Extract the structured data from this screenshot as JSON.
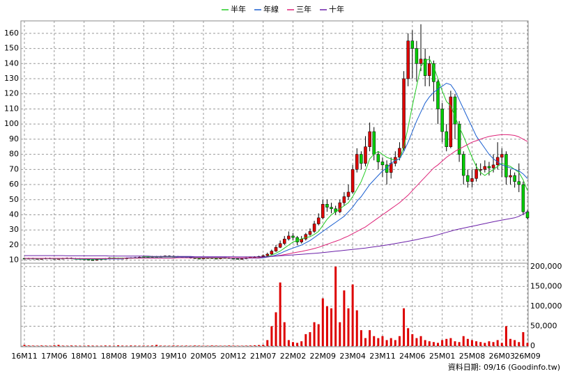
{
  "chart_data": {
    "type": "candlestick",
    "categories": [
      "16M11",
      null,
      null,
      null,
      null,
      null,
      null,
      "17M06",
      null,
      null,
      null,
      null,
      null,
      null,
      "18M01",
      null,
      null,
      null,
      null,
      null,
      null,
      "18M08",
      null,
      null,
      null,
      null,
      null,
      null,
      "19M03",
      null,
      null,
      null,
      null,
      null,
      null,
      "19M10",
      null,
      null,
      null,
      null,
      null,
      null,
      "20M05",
      null,
      null,
      null,
      null,
      null,
      null,
      "20M12",
      null,
      null,
      null,
      null,
      null,
      null,
      "21M07",
      null,
      null,
      null,
      null,
      null,
      null,
      "22M02",
      null,
      null,
      null,
      null,
      null,
      null,
      "22M09",
      null,
      null,
      null,
      null,
      null,
      null,
      "23M04",
      null,
      null,
      null,
      null,
      null,
      null,
      "23M11",
      null,
      null,
      null,
      null,
      null,
      null,
      "24M06",
      null,
      null,
      null,
      null,
      null,
      null,
      "25M01",
      null,
      null,
      null,
      null,
      null,
      null,
      "25M08",
      null,
      null,
      null,
      null,
      null,
      null,
      "26M03",
      null,
      null,
      null,
      null,
      null,
      "26M09"
    ],
    "open": [
      11.2,
      11,
      11.2,
      11,
      10.8,
      11,
      11.3,
      11.1,
      10.9,
      11,
      11.2,
      11.4,
      11.1,
      11,
      10.7,
      10.5,
      10.2,
      10,
      10.4,
      10.8,
      11,
      11.5,
      11.3,
      11.2,
      11,
      11.4,
      11.6,
      11.8,
      12,
      12.2,
      12.1,
      12.4,
      12.3,
      12.5,
      12.8,
      12.6,
      12.4,
      12.2,
      12,
      11.8,
      11.5,
      11.2,
      11,
      11.3,
      11.5,
      11.2,
      11,
      11.4,
      11.6,
      11.2,
      11,
      10.8,
      11,
      11.6,
      12,
      12.2,
      12.5,
      13,
      14,
      16,
      18.5,
      21,
      24,
      26,
      25,
      22,
      24,
      27,
      29,
      34,
      38,
      47,
      45,
      44,
      42,
      48,
      52,
      55,
      70,
      80,
      74,
      85,
      95,
      80,
      75,
      73,
      68,
      74,
      78,
      84,
      130,
      155,
      150,
      140,
      143,
      132,
      140,
      128,
      110,
      95,
      85,
      118,
      100,
      80,
      66,
      62,
      64,
      70,
      70,
      72,
      71,
      73,
      78,
      80,
      65,
      66,
      62,
      60,
      42
    ],
    "high": [
      11.6,
      11.6,
      11.6,
      11.4,
      11.4,
      11.7,
      11.7,
      11.5,
      11.4,
      11.6,
      11.8,
      11.8,
      11.5,
      11.4,
      11.1,
      10.9,
      10.6,
      10.8,
      11.2,
      11.4,
      11.9,
      11.9,
      11.7,
      11.6,
      11.8,
      12,
      12.2,
      12.4,
      12.6,
      12.6,
      12.8,
      12.8,
      12.9,
      13.2,
      13.2,
      13,
      12.8,
      12.6,
      12.4,
      12.2,
      11.9,
      11.6,
      11.7,
      11.9,
      11.9,
      11.6,
      11.8,
      12,
      12,
      11.6,
      11.4,
      11.4,
      12,
      12.4,
      12.6,
      12.9,
      13.8,
      15,
      17,
      20,
      23,
      26,
      29,
      28,
      26,
      26,
      28,
      31,
      36,
      41,
      50,
      50,
      48,
      46,
      50,
      55,
      60,
      73,
      84,
      82,
      92,
      101,
      98,
      82,
      78,
      76,
      78,
      82,
      88,
      135,
      160,
      162,
      155,
      166,
      150,
      145,
      142,
      130,
      114,
      100,
      122,
      120,
      102,
      82,
      70,
      70,
      74,
      74,
      76,
      75,
      80,
      88,
      84,
      82,
      70,
      68,
      74,
      62,
      43
    ],
    "low": [
      10.6,
      10.6,
      10.6,
      10.4,
      10.4,
      10.6,
      10.7,
      10.5,
      10.5,
      10.6,
      10.8,
      10.7,
      10.6,
      10.3,
      10.1,
      9.8,
      9.6,
      9.6,
      10,
      10.4,
      10.6,
      10.9,
      10.8,
      10.6,
      10.6,
      11,
      11.2,
      11.4,
      11.6,
      11.7,
      11.7,
      11.9,
      11.9,
      12.1,
      12.2,
      12,
      11.8,
      11.6,
      11.4,
      11.1,
      10.8,
      10.6,
      10.6,
      10.9,
      10.8,
      10.6,
      10.6,
      11,
      10.8,
      10.6,
      10.4,
      10.4,
      10.6,
      11.2,
      11.6,
      11.8,
      12,
      12.5,
      13.5,
      15.5,
      18,
      20,
      23,
      23,
      20,
      21,
      23,
      26,
      28,
      33,
      37,
      42,
      41,
      40,
      41,
      46,
      50,
      54,
      68,
      70,
      72,
      82,
      76,
      70,
      65,
      60,
      64,
      72,
      76,
      82,
      125,
      130,
      128,
      135,
      125,
      125,
      115,
      100,
      88,
      82,
      84,
      90,
      75,
      60,
      58,
      58,
      62,
      66,
      68,
      66,
      68,
      70,
      65,
      60,
      60,
      58,
      55,
      40,
      37
    ],
    "close": [
      11,
      11.2,
      11,
      10.8,
      11,
      11.3,
      11.1,
      10.9,
      11,
      11.2,
      11.4,
      11.1,
      11,
      10.7,
      10.5,
      10.2,
      10,
      10.4,
      10.8,
      11,
      11.5,
      11.3,
      11.2,
      11,
      11.4,
      11.6,
      11.8,
      12,
      12.2,
      12.1,
      12.4,
      12.3,
      12.5,
      12.8,
      12.6,
      12.4,
      12.2,
      12,
      11.8,
      11.5,
      11.2,
      11,
      11.3,
      11.5,
      11.2,
      11,
      11.4,
      11.6,
      11.2,
      11,
      10.8,
      11,
      11.6,
      12,
      12.2,
      12.5,
      13,
      14,
      16,
      18.5,
      21,
      24,
      26,
      25,
      22,
      24,
      27,
      29,
      34,
      38,
      47,
      45,
      44,
      42,
      48,
      52,
      55,
      70,
      80,
      74,
      85,
      95,
      80,
      75,
      73,
      68,
      74,
      78,
      84,
      130,
      155,
      150,
      140,
      143,
      132,
      140,
      128,
      110,
      95,
      85,
      118,
      100,
      80,
      66,
      62,
      64,
      70,
      70,
      72,
      71,
      73,
      78,
      80,
      65,
      66,
      62,
      60,
      42,
      38
    ],
    "volume": [
      3000,
      1500,
      1200,
      1000,
      1500,
      1200,
      1000,
      2000,
      3000,
      1200,
      1000,
      1500,
      1200,
      1000,
      1000,
      1500,
      1200,
      1000,
      1000,
      1500,
      1200,
      1000,
      2000,
      1200,
      1000,
      1500,
      1200,
      1000,
      1200,
      1000,
      1500,
      3000,
      1200,
      1000,
      1000,
      1500,
      1200,
      1000,
      1200,
      1000,
      1500,
      1200,
      1000,
      1000,
      1500,
      1200,
      1000,
      1000,
      1500,
      1200,
      1000,
      1000,
      1200,
      1500,
      2000,
      2500,
      3000,
      15000,
      50000,
      85000,
      160000,
      60000,
      15000,
      10000,
      8000,
      12000,
      30000,
      35000,
      60000,
      55000,
      120000,
      100000,
      95000,
      200000,
      60000,
      140000,
      95000,
      155000,
      90000,
      40000,
      20000,
      40000,
      25000,
      20000,
      25000,
      15000,
      20000,
      15000,
      25000,
      95000,
      45000,
      30000,
      20000,
      25000,
      15000,
      12000,
      10000,
      8000,
      15000,
      18000,
      20000,
      12000,
      10000,
      25000,
      18000,
      15000,
      12000,
      10000,
      8000,
      12000,
      10000,
      15000,
      8000,
      50000,
      18000,
      15000,
      10000,
      35000,
      8000
    ],
    "up_color": "#dd0000",
    "down_color": "#00cc00",
    "volume_color": "#dd0000",
    "series": [
      {
        "name": "半年",
        "color": "#22cc22",
        "values": [
          11.1,
          11.1,
          11.1,
          11.1,
          11.1,
          11.1,
          11.1,
          11.1,
          11.1,
          11.1,
          11.1,
          11.1,
          10.6,
          10.6,
          10.6,
          10.6,
          10.6,
          10.6,
          10.6,
          10.6,
          11.3,
          11.3,
          11.3,
          11.3,
          11.3,
          11.3,
          11.3,
          11.3,
          12.3,
          12.3,
          12.3,
          12.3,
          12.3,
          12.3,
          12.3,
          12.3,
          12.3,
          12.3,
          12.3,
          12.3,
          11.4,
          11.4,
          11.4,
          11.4,
          11.4,
          11.4,
          11.4,
          11.4,
          11.4,
          11.4,
          11.4,
          11.4,
          11.5,
          11.5,
          11.5,
          11.5,
          12,
          12.5,
          13.4,
          14.6,
          16,
          18,
          20,
          22,
          23,
          24,
          25,
          25.5,
          27,
          29,
          33,
          37,
          40,
          42,
          44,
          46,
          48,
          52,
          57,
          62,
          69,
          77,
          80,
          82,
          80,
          78,
          77,
          76,
          77,
          85,
          98,
          112,
          125,
          138,
          142,
          143,
          138,
          130,
          122,
          115,
          112,
          105,
          98,
          92,
          85,
          78,
          72,
          68,
          66,
          68,
          70,
          72,
          74,
          73,
          72,
          70,
          68,
          63,
          56
        ]
      },
      {
        "name": "年線",
        "color": "#1a5fd0",
        "values": [
          11.1,
          11.1,
          11.1,
          11.1,
          11.1,
          11.1,
          11.1,
          11.1,
          11.1,
          11.1,
          11.1,
          11.1,
          10.8,
          10.8,
          10.8,
          10.8,
          10.8,
          10.8,
          10.8,
          10.8,
          10.8,
          10.8,
          10.8,
          10.8,
          11.6,
          11.6,
          11.6,
          11.6,
          11.6,
          11.6,
          11.6,
          11.6,
          11.6,
          11.6,
          11.6,
          11.6,
          12,
          12,
          12,
          12,
          12,
          12,
          12,
          12,
          12,
          12,
          12,
          12,
          11.3,
          11.3,
          11.3,
          11.3,
          11.3,
          11.3,
          11.3,
          11.3,
          11.6,
          12,
          12.6,
          13.4,
          14.5,
          15.8,
          17,
          18,
          19,
          20,
          21.5,
          23,
          25,
          27,
          29,
          31,
          33,
          35,
          37,
          39,
          42,
          45,
          49,
          52,
          56,
          60,
          63,
          66,
          69,
          71,
          74,
          76,
          77,
          82,
          88,
          95,
          102,
          108,
          114,
          118,
          121,
          123,
          125,
          127,
          126,
          122,
          116,
          110,
          104,
          98,
          92,
          88,
          84,
          80,
          77,
          75,
          73,
          72,
          71,
          70,
          69,
          67,
          64
        ]
      },
      {
        "name": "三年",
        "color": "#dd2277",
        "values": [
          11.2,
          11.2,
          11.2,
          11.2,
          11.2,
          11.2,
          11.2,
          11.2,
          11.2,
          11.2,
          11.2,
          11.2,
          11.1,
          11.1,
          11.1,
          11.1,
          11.1,
          11.1,
          11.1,
          11.1,
          11.1,
          11.1,
          11.1,
          11.1,
          11.3,
          11.3,
          11.3,
          11.3,
          11.3,
          11.3,
          11.3,
          11.3,
          11.3,
          11.3,
          11.3,
          11.3,
          11.6,
          11.6,
          11.6,
          11.6,
          11.6,
          11.6,
          11.6,
          11.6,
          11.6,
          11.6,
          11.6,
          11.6,
          11.5,
          11.5,
          11.5,
          11.5,
          11.5,
          11.5,
          11.5,
          11.5,
          12,
          12.2,
          12.5,
          12.8,
          13.2,
          13.7,
          14.2,
          14.8,
          15.3,
          15.8,
          16.4,
          17,
          17.7,
          18.5,
          19.5,
          20.5,
          21.5,
          22.5,
          23.5,
          24.8,
          26,
          27.5,
          29,
          30.5,
          32,
          34,
          36,
          38,
          40,
          42,
          44,
          46,
          48,
          50.5,
          53,
          56,
          59,
          62,
          65,
          68,
          71,
          73,
          75.5,
          78,
          80,
          82,
          83.5,
          85,
          86.5,
          88,
          89,
          90,
          91,
          91.8,
          92.3,
          92.7,
          93,
          93,
          92.8,
          92.5,
          91.5,
          90,
          88.5
        ]
      },
      {
        "name": "十年",
        "color": "#6a1fa8",
        "values": [
          13,
          13,
          13,
          13,
          13,
          13,
          13,
          13,
          13,
          13,
          12.9,
          12.9,
          12.9,
          12.9,
          12.9,
          12.9,
          12.9,
          12.9,
          12.9,
          12.9,
          12.7,
          12.7,
          12.7,
          12.7,
          12.7,
          12.7,
          12.7,
          12.7,
          12.7,
          12.7,
          12.5,
          12.5,
          12.5,
          12.5,
          12.5,
          12.5,
          12.5,
          12.5,
          12.5,
          12.5,
          12.3,
          12.3,
          12.3,
          12.3,
          12.3,
          12.3,
          12.3,
          12.3,
          12.3,
          12.3,
          12.2,
          12.2,
          12.2,
          12.2,
          12.2,
          12.2,
          12.2,
          12.3,
          12.5,
          12.7,
          12.9,
          13.1,
          13.3,
          13.5,
          13.7,
          13.9,
          14.1,
          14.3,
          14.5,
          14.7,
          15,
          15.3,
          15.6,
          15.9,
          16.2,
          16.5,
          16.8,
          17.1,
          17.4,
          17.7,
          18,
          18.4,
          18.8,
          19.2,
          19.6,
          20,
          20.5,
          21,
          21.5,
          22,
          22.5,
          23,
          23.6,
          24.2,
          24.8,
          25.4,
          26,
          26.8,
          27.6,
          28.4,
          29.2,
          30,
          30.6,
          31.2,
          31.8,
          32.4,
          33,
          33.6,
          34.2,
          34.8,
          35.4,
          36,
          36.5,
          37,
          37.5,
          38,
          39,
          40.5,
          42
        ]
      }
    ],
    "ylim": [
      8,
      165
    ],
    "yticks": [
      10,
      20,
      30,
      40,
      50,
      60,
      70,
      80,
      90,
      100,
      110,
      120,
      130,
      140,
      150,
      160
    ],
    "y2lim": [
      0,
      205000
    ],
    "y2ticks": [
      0,
      {
        "value": 50000,
        "label": "50,000"
      },
      {
        "value": 100000,
        "label": "100,000"
      },
      {
        "value": 150000,
        "label": "150,000"
      },
      {
        "value": 200000,
        "label": "200,000"
      }
    ],
    "grid": true,
    "annotation": "資料日期: 09/16 (Goodinfo.tw)"
  }
}
